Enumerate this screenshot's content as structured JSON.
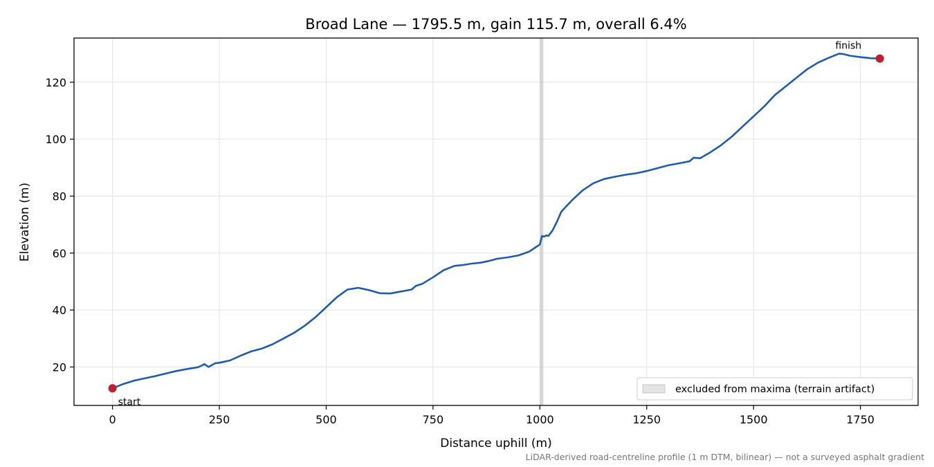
{
  "chart_data": {
    "type": "line",
    "title": "Broad Lane — 1795.5 m, gain 115.7 m, overall 6.4%",
    "xlabel": "Distance uphill (m)",
    "ylabel": "Elevation (m)",
    "xlim": [
      -90,
      1885
    ],
    "ylim": [
      6.5,
      135.5
    ],
    "xticks": [
      0,
      250,
      500,
      750,
      1000,
      1250,
      1500,
      1750
    ],
    "yticks": [
      20,
      40,
      60,
      80,
      100,
      120
    ],
    "grid": true,
    "legend_placement": "lower-right",
    "line_color": "#1f5bab",
    "marker_color": "#c0202d",
    "band_color": "#c8c8c8",
    "series": [
      {
        "x": [
          0,
          25,
          50,
          75,
          100,
          125,
          150,
          175,
          200,
          210,
          215,
          225,
          240,
          250,
          275,
          300,
          325,
          350,
          375,
          400,
          425,
          450,
          475,
          500,
          525,
          550,
          575,
          600,
          625,
          650,
          675,
          700,
          710,
          725,
          750,
          775,
          800,
          820,
          840,
          860,
          880,
          890,
          900,
          925,
          950,
          975,
          990,
          1000,
          1005,
          1010,
          1015,
          1020,
          1030,
          1040,
          1050,
          1075,
          1100,
          1125,
          1150,
          1175,
          1200,
          1225,
          1250,
          1275,
          1300,
          1325,
          1350,
          1360,
          1375,
          1400,
          1425,
          1450,
          1475,
          1500,
          1525,
          1550,
          1575,
          1600,
          1625,
          1650,
          1675,
          1700,
          1710,
          1725,
          1750,
          1775,
          1795.5
        ],
        "y": [
          12.5,
          14.0,
          15.2,
          16.0,
          16.8,
          17.7,
          18.6,
          19.3,
          19.9,
          20.6,
          21.0,
          20.0,
          21.3,
          21.5,
          22.3,
          24.0,
          25.5,
          26.5,
          28.0,
          30.0,
          32.0,
          34.5,
          37.5,
          41.0,
          44.5,
          47.2,
          47.8,
          47.0,
          45.9,
          45.8,
          46.5,
          47.2,
          48.5,
          49.2,
          51.5,
          54.0,
          55.5,
          55.8,
          56.3,
          56.6,
          57.2,
          57.6,
          58.0,
          58.5,
          59.2,
          60.5,
          62.0,
          63.0,
          66.0,
          65.8,
          66.2,
          66.0,
          68.0,
          71.0,
          74.5,
          78.5,
          82.0,
          84.5,
          86.0,
          86.8,
          87.5,
          88.0,
          88.8,
          89.8,
          90.8,
          91.5,
          92.2,
          93.5,
          93.3,
          95.5,
          98.0,
          101.0,
          104.5,
          108.0,
          111.5,
          115.5,
          118.5,
          121.5,
          124.5,
          126.8,
          128.5,
          130.0,
          129.9,
          129.3,
          128.8,
          128.4,
          128.3
        ]
      }
    ],
    "excluded_band": [
      1000,
      1008
    ],
    "annotations": {
      "start": "start",
      "finish": "finish"
    },
    "legend_label": "excluded from maxima (terrain artifact)",
    "footnote": "LiDAR-derived road-centreline profile (1 m DTM, bilinear) — not a surveyed asphalt gradient"
  }
}
